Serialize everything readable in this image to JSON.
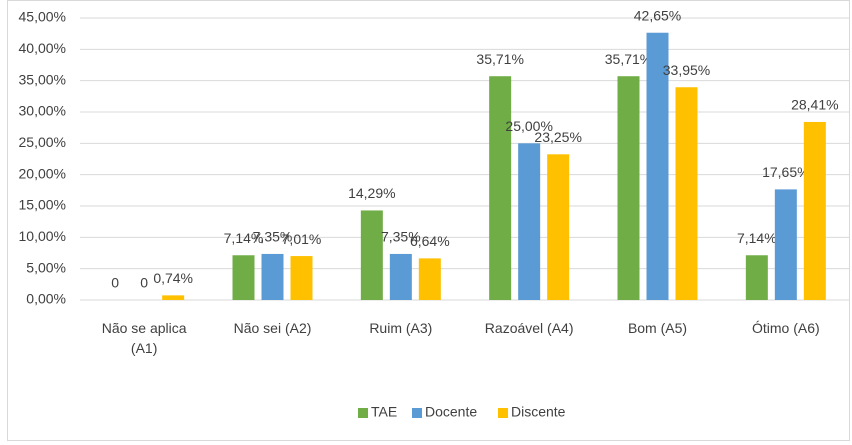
{
  "chart_data": {
    "type": "bar",
    "categories": [
      "Não se aplica (A1)",
      "Não sei (A2)",
      "Ruim (A3)",
      "Razoável (A4)",
      "Bom (A5)",
      "Ótimo (A6)"
    ],
    "series": [
      {
        "name": "TAE",
        "color": "#70ad47",
        "values": [
          0,
          7.14,
          14.29,
          35.71,
          35.71,
          7.14
        ],
        "value_labels": [
          "0",
          "7,14%",
          "14,29%",
          "35,71%",
          "35,71%",
          "7,14%"
        ]
      },
      {
        "name": "Docente",
        "color": "#5b9bd5",
        "values": [
          0,
          7.35,
          7.35,
          25.0,
          42.65,
          17.65
        ],
        "value_labels": [
          "0",
          "7,35%",
          "7,35%",
          "25,00%",
          "42,65%",
          "17,65%"
        ]
      },
      {
        "name": "Discente",
        "color": "#ffc000",
        "values": [
          0.74,
          7.01,
          6.64,
          23.25,
          33.95,
          28.41
        ],
        "value_labels": [
          "0,74%",
          "7,01%",
          "6,64%",
          "23,25%",
          "33,95%",
          "28,41%"
        ]
      }
    ],
    "ylim": [
      0,
      45
    ],
    "yticks": [
      {
        "value": 0,
        "label": "0,00%"
      },
      {
        "value": 5,
        "label": "5,00%"
      },
      {
        "value": 10,
        "label": "10,00%"
      },
      {
        "value": 15,
        "label": "15,00%"
      },
      {
        "value": 20,
        "label": "20,00%"
      },
      {
        "value": 25,
        "label": "25,00%"
      },
      {
        "value": 30,
        "label": "30,00%"
      },
      {
        "value": 35,
        "label": "35,00%"
      },
      {
        "value": 40,
        "label": "40,00%"
      },
      {
        "value": 45,
        "label": "45,00%"
      }
    ],
    "grid": true,
    "legend": "bottom"
  }
}
